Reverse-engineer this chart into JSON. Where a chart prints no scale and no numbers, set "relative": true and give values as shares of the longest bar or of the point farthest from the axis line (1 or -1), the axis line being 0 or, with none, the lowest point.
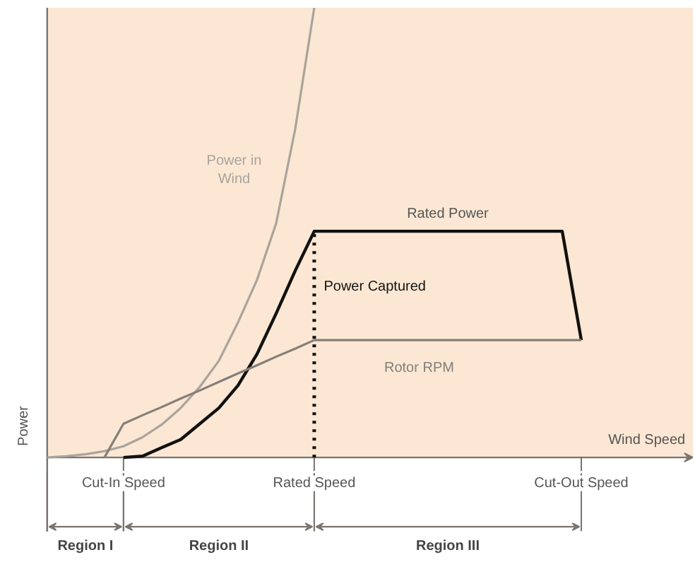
{
  "chart_data": {
    "type": "line",
    "relative": true,
    "xlabel": "Wind Speed",
    "ylabel": "Power",
    "tick_labels": "x",
    "grid": false,
    "marker": "none",
    "line_style": "solid",
    "categories": [
      null,
      null,
      null,
      null,
      "Cut-In Speed",
      null,
      null,
      null,
      null,
      null,
      null,
      null,
      null,
      null,
      "Rated Speed",
      null,
      null,
      null,
      null,
      null,
      null,
      null,
      null,
      null,
      null,
      null,
      null,
      null,
      "Cut-Out Speed",
      null,
      null,
      null,
      null,
      null
    ],
    "series": [
      {
        "name": "Power in\nWind",
        "color": "#aaa39d",
        "values": [
          0,
          0.003,
          0.007,
          0.014,
          0.025,
          0.045,
          0.073,
          0.11,
          0.157,
          0.215,
          0.3,
          0.395,
          0.52,
          0.73,
          1.0,
          null,
          null,
          null,
          null,
          null,
          null,
          null,
          null,
          null,
          null,
          null,
          null,
          null,
          null,
          null,
          null,
          null,
          null,
          null
        ]
      },
      {
        "name": "Power Captured",
        "color": "#111111",
        "values": [
          null,
          null,
          null,
          null,
          0,
          0.003,
          0.022,
          0.04,
          0.075,
          0.11,
          0.16,
          0.23,
          0.32,
          0.415,
          0.503,
          0.503,
          0.503,
          0.503,
          0.503,
          0.503,
          0.503,
          0.503,
          0.503,
          0.503,
          0.503,
          0.503,
          0.503,
          0.503,
          0.261,
          null,
          null,
          null,
          null,
          null
        ]
      },
      {
        "name": "Rotor RPM",
        "color": "#857f7a",
        "values": [
          null,
          null,
          null,
          0,
          0.075,
          0.094,
          0.112,
          0.131,
          0.149,
          0.168,
          0.187,
          0.205,
          0.224,
          0.242,
          0.261,
          0.261,
          0.261,
          0.261,
          0.261,
          0.261,
          0.261,
          0.261,
          0.261,
          0.261,
          0.261,
          0.261,
          0.261,
          0.261,
          0.261,
          null,
          null,
          null,
          null,
          null
        ]
      }
    ],
    "ref_lines": [
      {
        "axis": "x",
        "value": "Rated Speed",
        "color": "#111111",
        "line_style": "dotted"
      }
    ],
    "annotations": [
      {
        "text": "Rated Power",
        "y": 0.503
      },
      "Region I",
      "Region II",
      "Region III"
    ]
  }
}
